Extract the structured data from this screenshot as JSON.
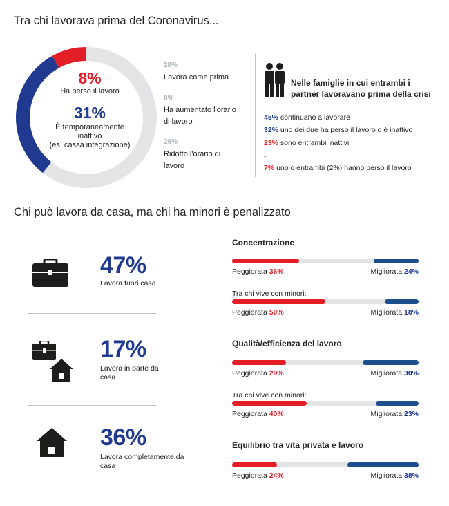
{
  "section1": {
    "title": "Tra chi lavorava prima del Coronavirus...",
    "donut": {
      "lost_pct": "8%",
      "lost_label": "Ha perso il lavoro",
      "inactive_pct": "31%",
      "inactive_label_1": "È temporaneamente",
      "inactive_label_2": "inattivo",
      "inactive_label_3": "(es. cassa integrazione)"
    },
    "legend": [
      {
        "pct": "28%",
        "label": "Lavora come prima"
      },
      {
        "pct": "6%",
        "label": "Ha aumentato l'orario di lavoro"
      },
      {
        "pct": "26%",
        "label": "Ridotto l'orario di lavoro"
      }
    ],
    "families": {
      "title_1": "Nelle famiglie in cui entrambi i",
      "title_2": "partner lavoravano prima della crisi",
      "lines": [
        {
          "pct": "45%",
          "text": " continuano a lavorare",
          "color": "#1f3a8f"
        },
        {
          "pct": "32%",
          "text": " uno dei due ha perso il lavoro o è inattivo",
          "color": "#1f3a8f"
        },
        {
          "pct": "23%",
          "text": " sono entrambi inattivi",
          "color": "#e31e26"
        }
      ],
      "dash": "-",
      "extra_pct": "7%",
      "extra_text": " uno o entrambi (2%) hanno perso il lavoro"
    }
  },
  "section2": {
    "title": "Chi può lavora da casa, ma chi ha minori è penalizzato",
    "work": [
      {
        "pct": "47%",
        "label": "Lavora fuori casa"
      },
      {
        "pct": "17%",
        "label": "Lavora in parte da casa"
      },
      {
        "pct": "36%",
        "label": "Lavora completamente da casa"
      }
    ],
    "bar_sections": [
      {
        "title": "Concentrazione",
        "sub": "Tra chi vive con minori:"
      },
      {
        "title": "Qualità/efficienza del lavoro",
        "sub": "Tra chi vive con minori:"
      },
      {
        "title": "Equilibrio tra vita privata e lavoro"
      }
    ]
  },
  "chart_data": [
    {
      "type": "pie",
      "categories": [
        "Lavora come prima",
        "Ha aumentato l'orario di lavoro",
        "Ridotto l'orario di lavoro",
        "È temporaneamente inattivo",
        "Ha perso il lavoro"
      ],
      "values": [
        28,
        6,
        26,
        31,
        8
      ],
      "colors": [
        "#e2e4e5",
        "#e2e4e5",
        "#e2e4e5",
        "#1f3a8f",
        "#e31e26"
      ]
    },
    {
      "type": "bar",
      "stacked": true,
      "categories": [
        "Concentrazione",
        "Concentrazione - Tra chi vive con minori",
        "Qualità/efficienza del lavoro",
        "Qualità/efficienza del lavoro - Tra chi vive con minori",
        "Equilibrio tra vita privata e lavoro"
      ],
      "series": [
        {
          "name": "Peggiorata",
          "values": [
            36,
            50,
            29,
            40,
            24
          ],
          "labels": [
            "36%",
            "50%",
            "29%",
            "40%",
            "24%"
          ],
          "color": "#e31e26"
        },
        {
          "name": "Migliorata",
          "values": [
            24,
            18,
            30,
            23,
            38
          ],
          "labels": [
            "24%",
            "18%",
            "30%",
            "23%",
            "38%"
          ],
          "color": "#1f4e8c"
        }
      ],
      "bar_label_worse": "Peggiorata",
      "bar_label_better": "Migliorata",
      "ylim": [
        0,
        100
      ]
    }
  ]
}
